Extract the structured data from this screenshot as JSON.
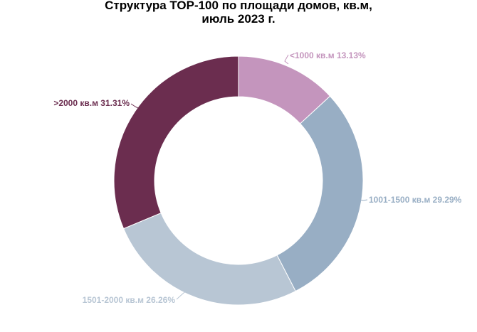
{
  "chart_data": {
    "type": "pie",
    "donut": true,
    "title_lines": [
      "Структура ТОР-100 по площади домов, кв.м,",
      "июль 2023 г."
    ],
    "slices": [
      {
        "label": "<1000 кв.м",
        "value": 13.13,
        "text": "<1000 кв.м 13.13%",
        "color": "#c495bd"
      },
      {
        "label": "1001-1500 кв.м",
        "value": 29.29,
        "text": "1001-1500 кв.м 29.29%",
        "color": "#98aec4"
      },
      {
        "label": "1501-2000 кв.м",
        "value": 26.26,
        "text": "1501-2000 кв.м 26.26%",
        "color": "#b8c6d4"
      },
      {
        "label": ">2000 кв.м",
        "value": 31.31,
        "text": ">2000 кв.м 31.31%",
        "color": "#6b2d4f"
      }
    ],
    "unit": "%"
  }
}
